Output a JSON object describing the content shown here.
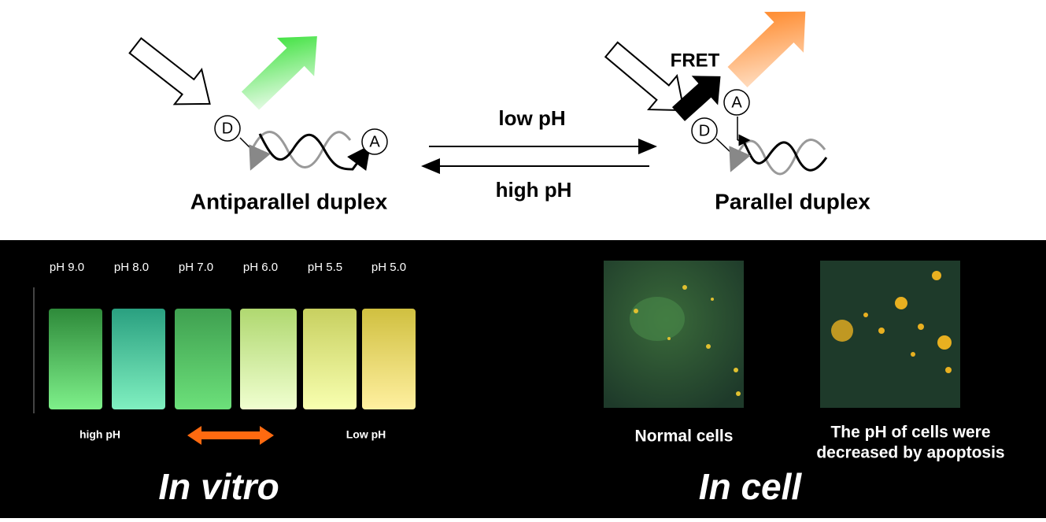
{
  "top": {
    "left": {
      "donor": "D",
      "acceptor": "A",
      "label": "Antiparallel duplex"
    },
    "equilibrium": {
      "forward": "low pH",
      "reverse": "high pH"
    },
    "right": {
      "fret": "FRET",
      "donor": "D",
      "acceptor": "A",
      "label": "Parallel duplex"
    }
  },
  "in_vitro": {
    "samples": [
      "pH 9.0",
      "pH 8.0",
      "pH 7.0",
      "pH 6.0",
      "pH 5.5",
      "pH 5.0"
    ],
    "left_label": "high pH",
    "right_label": "Low pH",
    "title": "In vitro"
  },
  "in_cell": {
    "panels": [
      {
        "caption_lines": [
          "Normal cells"
        ]
      },
      {
        "caption_lines": [
          "The pH of  cells were",
          "decreased by apoptosis"
        ]
      }
    ],
    "title": "In cell"
  }
}
